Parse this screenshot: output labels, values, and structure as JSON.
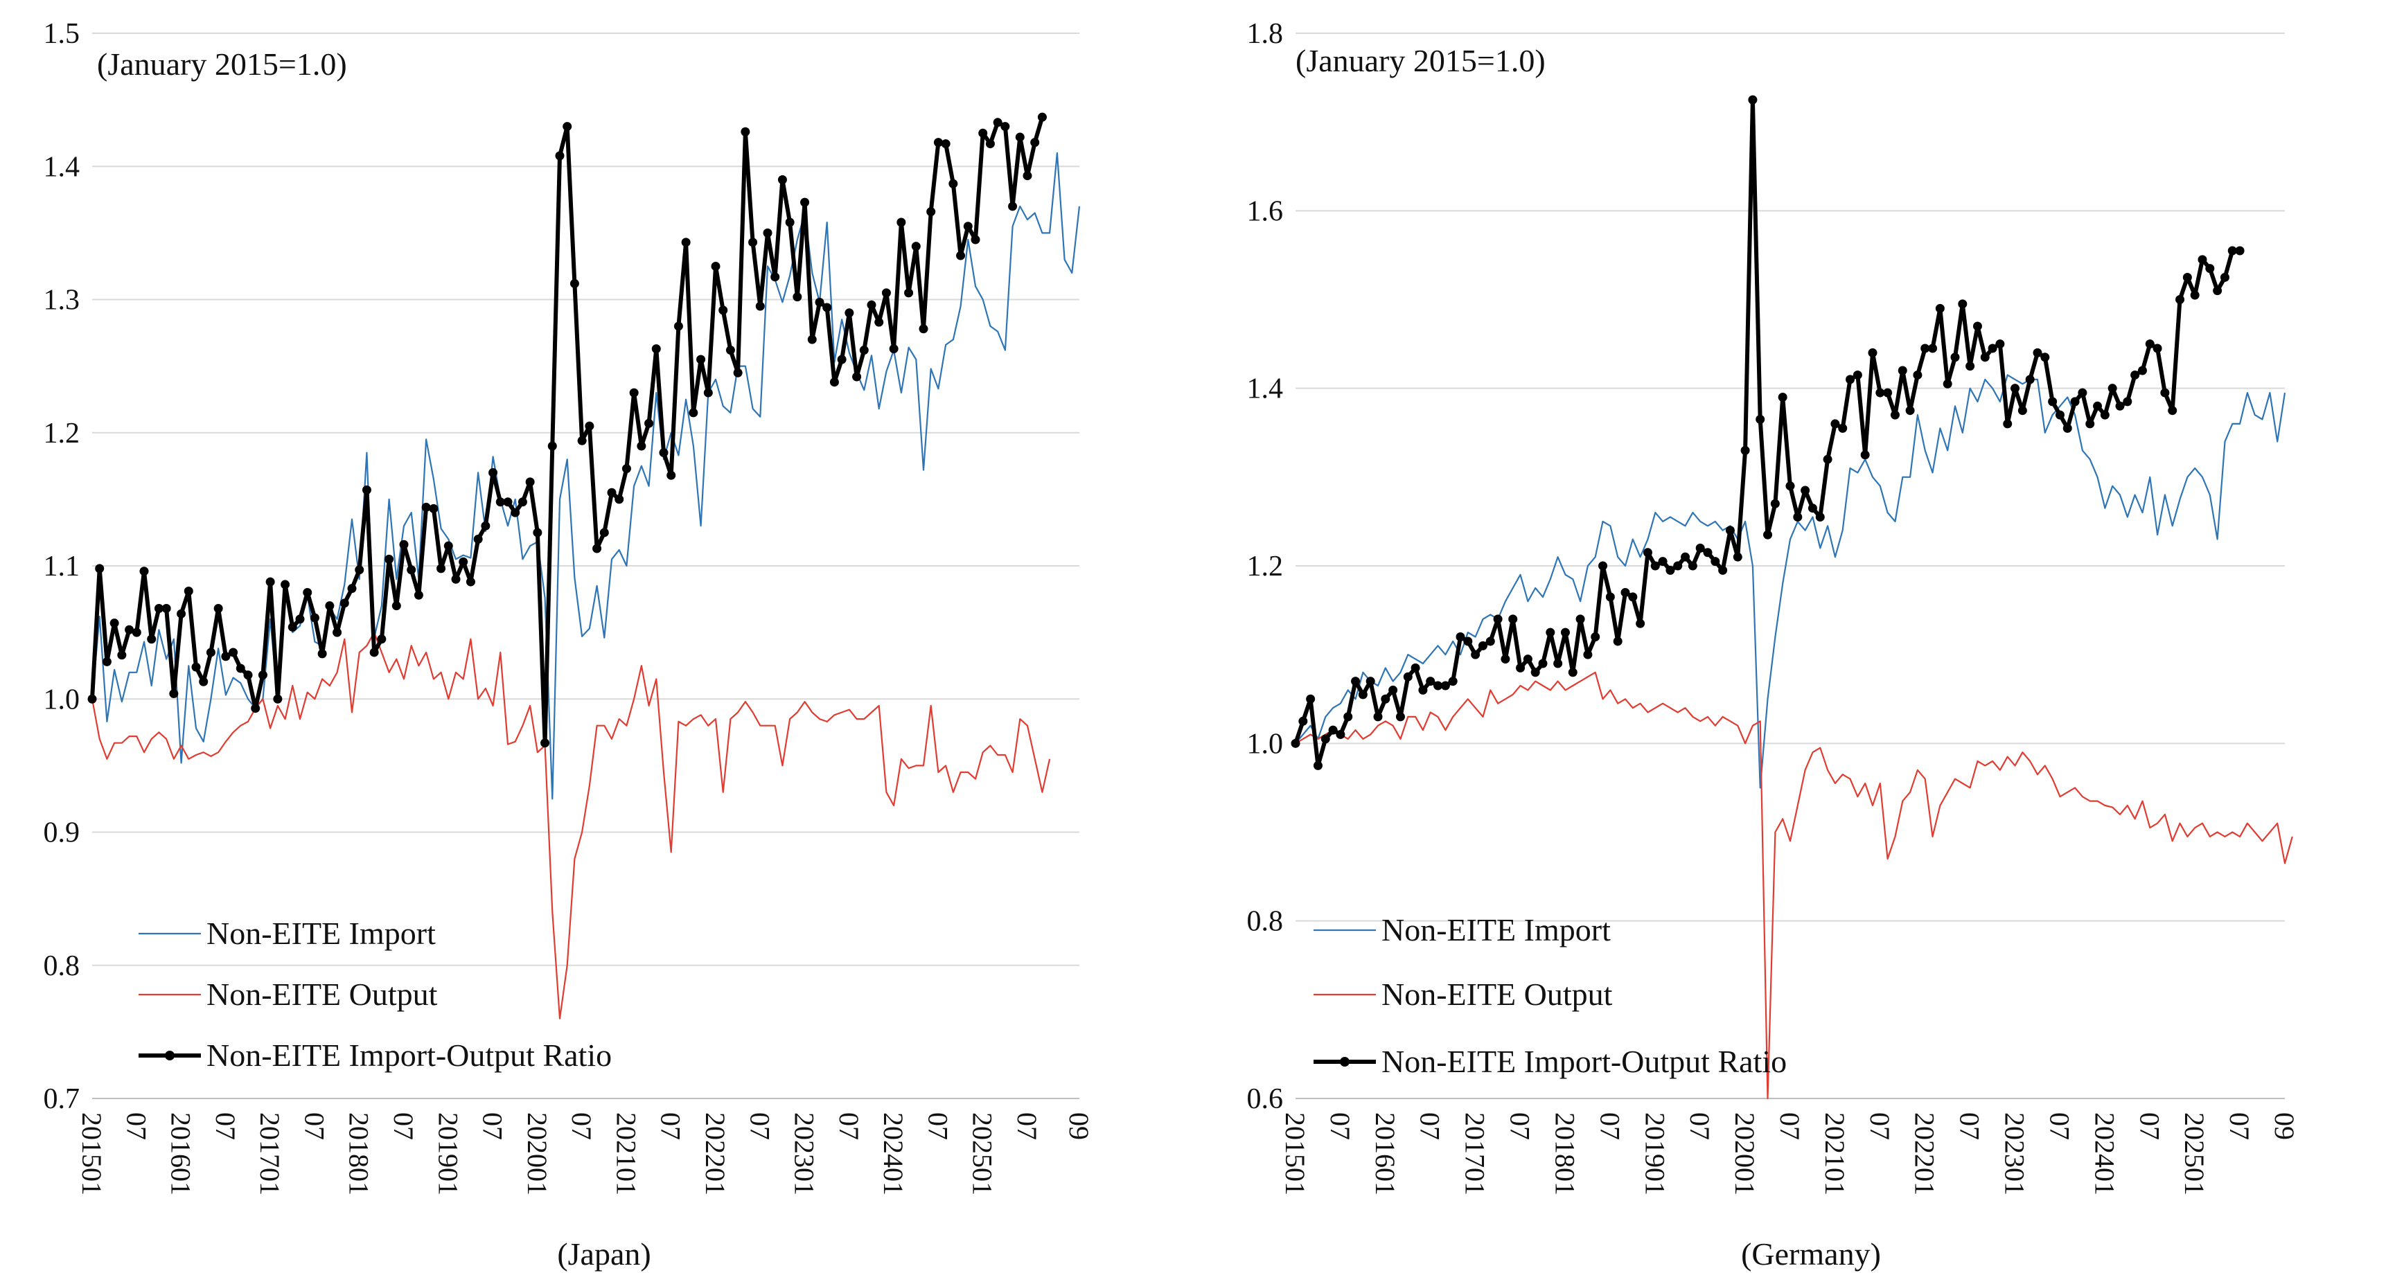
{
  "chart_data": [
    {
      "type": "line",
      "xlabel": "(Japan)",
      "note": "(January 2015=1.0)",
      "ylim": [
        0.7,
        1.5
      ],
      "yticks": [
        "0.7",
        "0.8",
        "0.9",
        "1.0",
        "1.1",
        "1.2",
        "1.3",
        "1.4",
        "1.5"
      ],
      "x_tick_labels": [
        "201501",
        "07",
        "201601",
        "07",
        "201701",
        "07",
        "201801",
        "07",
        "201901",
        "07",
        "202001",
        "07",
        "202101",
        "07",
        "202201",
        "07",
        "202301",
        "07",
        "202401",
        "07",
        "202501",
        "07",
        "09"
      ],
      "grid": "horizontal",
      "legend_position": "bottom-left",
      "series_colors": [
        "#2e75b6",
        "#e03c31",
        "#000000"
      ],
      "series": [
        {
          "name": "Non-EITE Import",
          "values": [
            1.0,
            1.062,
            0.983,
            1.022,
            0.998,
            1.02,
            1.02,
            1.043,
            1.01,
            1.052,
            1.03,
            1.045,
            0.952,
            1.025,
            0.978,
            0.968,
            1.0,
            1.038,
            1.003,
            1.016,
            1.012,
            1.0,
            0.993,
            1.0,
            1.06,
            1.0,
            1.083,
            1.05,
            1.055,
            1.078,
            1.043,
            1.04,
            1.068,
            1.06,
            1.086,
            1.135,
            1.09,
            1.185,
            1.046,
            1.07,
            1.15,
            1.09,
            1.13,
            1.14,
            1.09,
            1.195,
            1.165,
            1.128,
            1.12,
            1.105,
            1.108,
            1.106,
            1.17,
            1.126,
            1.182,
            1.15,
            1.13,
            1.15,
            1.105,
            1.115,
            1.118,
            1.076,
            0.925,
            1.15,
            1.18,
            1.091,
            1.047,
            1.053,
            1.085,
            1.046,
            1.105,
            1.112,
            1.1,
            1.16,
            1.175,
            1.16,
            1.23,
            1.18,
            1.2,
            1.183,
            1.225,
            1.19,
            1.13,
            1.23,
            1.24,
            1.22,
            1.215,
            1.25,
            1.25,
            1.218,
            1.212,
            1.325,
            1.315,
            1.298,
            1.318,
            1.345,
            1.365,
            1.32,
            1.298,
            1.358,
            1.253,
            1.285,
            1.26,
            1.245,
            1.232,
            1.258,
            1.218,
            1.246,
            1.262,
            1.23,
            1.264,
            1.255,
            1.172,
            1.248,
            1.233,
            1.266,
            1.27,
            1.295,
            1.345,
            1.31,
            1.3,
            1.28,
            1.276,
            1.262,
            1.355,
            1.37,
            1.36,
            1.365,
            1.35,
            1.35,
            1.41,
            1.33,
            1.32,
            1.37
          ]
        },
        {
          "name": "Non-EITE Output",
          "values": [
            1.0,
            0.97,
            0.955,
            0.967,
            0.967,
            0.972,
            0.972,
            0.96,
            0.97,
            0.975,
            0.97,
            0.955,
            0.965,
            0.955,
            0.958,
            0.96,
            0.957,
            0.96,
            0.968,
            0.975,
            0.98,
            0.983,
            0.993,
            1.0,
            0.978,
            0.995,
            0.985,
            1.01,
            0.985,
            1.005,
            1.0,
            1.015,
            1.01,
            1.02,
            1.045,
            0.99,
            1.035,
            1.04,
            1.05,
            1.035,
            1.02,
            1.03,
            1.015,
            1.04,
            1.025,
            1.035,
            1.015,
            1.02,
            1.0,
            1.02,
            1.015,
            1.045,
            1.0,
            1.008,
            0.995,
            1.035,
            0.966,
            0.968,
            0.98,
            0.995,
            0.96,
            0.965,
            0.84,
            0.76,
            0.8,
            0.88,
            0.9,
            0.935,
            0.98,
            0.98,
            0.97,
            0.985,
            0.98,
            1.0,
            1.025,
            0.995,
            1.015,
            0.945,
            0.885,
            0.983,
            0.98,
            0.985,
            0.988,
            0.98,
            0.985,
            0.93,
            0.985,
            0.99,
            0.998,
            0.99,
            0.98,
            0.98,
            0.98,
            0.95,
            0.985,
            0.99,
            0.998,
            0.99,
            0.985,
            0.983,
            0.988,
            0.99,
            0.992,
            0.985,
            0.985,
            0.99,
            0.995,
            0.93,
            0.92,
            0.955,
            0.948,
            0.95,
            0.95,
            0.995,
            0.945,
            0.95,
            0.93,
            0.945,
            0.945,
            0.94,
            0.96,
            0.965,
            0.958,
            0.958,
            0.945,
            0.985,
            0.98,
            0.955,
            0.93,
            0.955
          ]
        },
        {
          "name": "Non-EITE Import-Output Ratio",
          "values": [
            1.0,
            1.098,
            1.028,
            1.057,
            1.033,
            1.052,
            1.05,
            1.096,
            1.045,
            1.068,
            1.068,
            1.004,
            1.064,
            1.081,
            1.024,
            1.013,
            1.035,
            1.068,
            1.032,
            1.035,
            1.023,
            1.018,
            0.993,
            1.018,
            1.088,
            1.0,
            1.086,
            1.054,
            1.06,
            1.08,
            1.061,
            1.034,
            1.07,
            1.05,
            1.072,
            1.083,
            1.097,
            1.157,
            1.035,
            1.045,
            1.105,
            1.07,
            1.116,
            1.097,
            1.078,
            1.144,
            1.143,
            1.098,
            1.115,
            1.09,
            1.103,
            1.088,
            1.12,
            1.13,
            1.17,
            1.148,
            1.148,
            1.14,
            1.148,
            1.163,
            1.125,
            0.967,
            1.19,
            1.408,
            1.43,
            1.312,
            1.194,
            1.205,
            1.113,
            1.125,
            1.155,
            1.15,
            1.173,
            1.23,
            1.19,
            1.207,
            1.263,
            1.185,
            1.168,
            1.28,
            1.343,
            1.215,
            1.255,
            1.23,
            1.325,
            1.292,
            1.262,
            1.245,
            1.426,
            1.343,
            1.295,
            1.35,
            1.317,
            1.39,
            1.358,
            1.302,
            1.373,
            1.27,
            1.298,
            1.294,
            1.238,
            1.255,
            1.29,
            1.242,
            1.262,
            1.296,
            1.283,
            1.305,
            1.263,
            1.358,
            1.305,
            1.34,
            1.278,
            1.366,
            1.418,
            1.417,
            1.387,
            1.333,
            1.355,
            1.345,
            1.425,
            1.417,
            1.433,
            1.43,
            1.37,
            1.422,
            1.393,
            1.418,
            1.437
          ]
        }
      ]
    },
    {
      "type": "line",
      "xlabel": "(Germany)",
      "note": "(January 2015=1.0)",
      "ylim": [
        0.6,
        1.8
      ],
      "yticks": [
        "0.6",
        "0.8",
        "1.0",
        "1.2",
        "1.4",
        "1.6",
        "1.8"
      ],
      "x_tick_labels": [
        "201501",
        "07",
        "201601",
        "07",
        "201701",
        "07",
        "201801",
        "07",
        "201901",
        "07",
        "202001",
        "07",
        "202101",
        "07",
        "202201",
        "07",
        "202301",
        "07",
        "202401",
        "07",
        "202501",
        "07",
        "09"
      ],
      "grid": "horizontal",
      "legend_position": "bottom-left",
      "series_colors": [
        "#2e75b6",
        "#e03c31",
        "#000000"
      ],
      "series": [
        {
          "name": "Non-EITE Import",
          "values": [
            1.0,
            1.01,
            1.02,
            1.005,
            1.03,
            1.04,
            1.045,
            1.06,
            1.05,
            1.08,
            1.07,
            1.065,
            1.085,
            1.07,
            1.08,
            1.1,
            1.095,
            1.09,
            1.1,
            1.11,
            1.1,
            1.115,
            1.1,
            1.125,
            1.12,
            1.14,
            1.145,
            1.14,
            1.16,
            1.175,
            1.19,
            1.16,
            1.175,
            1.165,
            1.185,
            1.21,
            1.19,
            1.185,
            1.16,
            1.2,
            1.21,
            1.25,
            1.245,
            1.21,
            1.2,
            1.23,
            1.21,
            1.23,
            1.26,
            1.25,
            1.255,
            1.25,
            1.245,
            1.26,
            1.25,
            1.245,
            1.25,
            1.24,
            1.245,
            1.23,
            1.25,
            1.2,
            0.95,
            1.05,
            1.12,
            1.18,
            1.23,
            1.25,
            1.24,
            1.255,
            1.22,
            1.245,
            1.21,
            1.24,
            1.31,
            1.305,
            1.32,
            1.3,
            1.29,
            1.26,
            1.25,
            1.3,
            1.3,
            1.37,
            1.33,
            1.305,
            1.355,
            1.33,
            1.38,
            1.35,
            1.4,
            1.385,
            1.41,
            1.4,
            1.385,
            1.415,
            1.41,
            1.405,
            1.41,
            1.41,
            1.35,
            1.37,
            1.38,
            1.39,
            1.37,
            1.33,
            1.32,
            1.3,
            1.265,
            1.29,
            1.28,
            1.255,
            1.28,
            1.26,
            1.3,
            1.235,
            1.28,
            1.245,
            1.275,
            1.3,
            1.31,
            1.3,
            1.28,
            1.23,
            1.34,
            1.36,
            1.36,
            1.395,
            1.37,
            1.365,
            1.395,
            1.34,
            1.395
          ]
        },
        {
          "name": "Non-EITE Output",
          "values": [
            1.0,
            1.005,
            1.01,
            1.005,
            1.01,
            1.015,
            1.01,
            1.005,
            1.015,
            1.005,
            1.01,
            1.02,
            1.025,
            1.02,
            1.005,
            1.03,
            1.03,
            1.015,
            1.035,
            1.03,
            1.015,
            1.03,
            1.04,
            1.05,
            1.04,
            1.03,
            1.06,
            1.045,
            1.05,
            1.055,
            1.065,
            1.06,
            1.07,
            1.065,
            1.06,
            1.07,
            1.06,
            1.065,
            1.07,
            1.075,
            1.08,
            1.05,
            1.06,
            1.045,
            1.05,
            1.04,
            1.045,
            1.035,
            1.04,
            1.045,
            1.04,
            1.035,
            1.04,
            1.03,
            1.025,
            1.03,
            1.02,
            1.03,
            1.025,
            1.02,
            1.0,
            1.02,
            1.025,
            0.6,
            0.9,
            0.915,
            0.89,
            0.93,
            0.97,
            0.99,
            0.995,
            0.97,
            0.955,
            0.965,
            0.96,
            0.94,
            0.955,
            0.93,
            0.955,
            0.87,
            0.895,
            0.935,
            0.945,
            0.97,
            0.96,
            0.895,
            0.93,
            0.945,
            0.96,
            0.955,
            0.95,
            0.98,
            0.975,
            0.98,
            0.97,
            0.985,
            0.975,
            0.99,
            0.98,
            0.965,
            0.975,
            0.96,
            0.94,
            0.945,
            0.95,
            0.94,
            0.935,
            0.935,
            0.93,
            0.928,
            0.92,
            0.93,
            0.915,
            0.935,
            0.905,
            0.91,
            0.92,
            0.89,
            0.91,
            0.895,
            0.905,
            0.91,
            0.895,
            0.9,
            0.895,
            0.9,
            0.895,
            0.91,
            0.9,
            0.89,
            0.9,
            0.91,
            0.865,
            0.895
          ]
        },
        {
          "name": "Non-EITE Import-Output Ratio",
          "values": [
            1.0,
            1.025,
            1.05,
            0.975,
            1.005,
            1.015,
            1.01,
            1.03,
            1.07,
            1.055,
            1.07,
            1.03,
            1.05,
            1.06,
            1.03,
            1.075,
            1.085,
            1.06,
            1.07,
            1.065,
            1.065,
            1.07,
            1.12,
            1.115,
            1.1,
            1.11,
            1.115,
            1.14,
            1.095,
            1.14,
            1.085,
            1.095,
            1.08,
            1.09,
            1.125,
            1.09,
            1.125,
            1.08,
            1.14,
            1.1,
            1.12,
            1.2,
            1.165,
            1.115,
            1.17,
            1.165,
            1.135,
            1.215,
            1.2,
            1.205,
            1.195,
            1.2,
            1.21,
            1.2,
            1.22,
            1.215,
            1.205,
            1.195,
            1.24,
            1.21,
            1.33,
            1.725,
            1.365,
            1.235,
            1.27,
            1.39,
            1.29,
            1.255,
            1.285,
            1.265,
            1.255,
            1.32,
            1.36,
            1.355,
            1.41,
            1.415,
            1.325,
            1.44,
            1.395,
            1.395,
            1.37,
            1.42,
            1.375,
            1.415,
            1.445,
            1.445,
            1.49,
            1.405,
            1.435,
            1.495,
            1.425,
            1.47,
            1.435,
            1.445,
            1.45,
            1.36,
            1.4,
            1.375,
            1.41,
            1.44,
            1.435,
            1.385,
            1.37,
            1.355,
            1.385,
            1.395,
            1.36,
            1.38,
            1.37,
            1.4,
            1.38,
            1.385,
            1.415,
            1.42,
            1.45,
            1.445,
            1.395,
            1.375,
            1.5,
            1.525,
            1.505,
            1.545,
            1.535,
            1.51,
            1.525,
            1.555,
            1.555
          ]
        }
      ]
    }
  ]
}
